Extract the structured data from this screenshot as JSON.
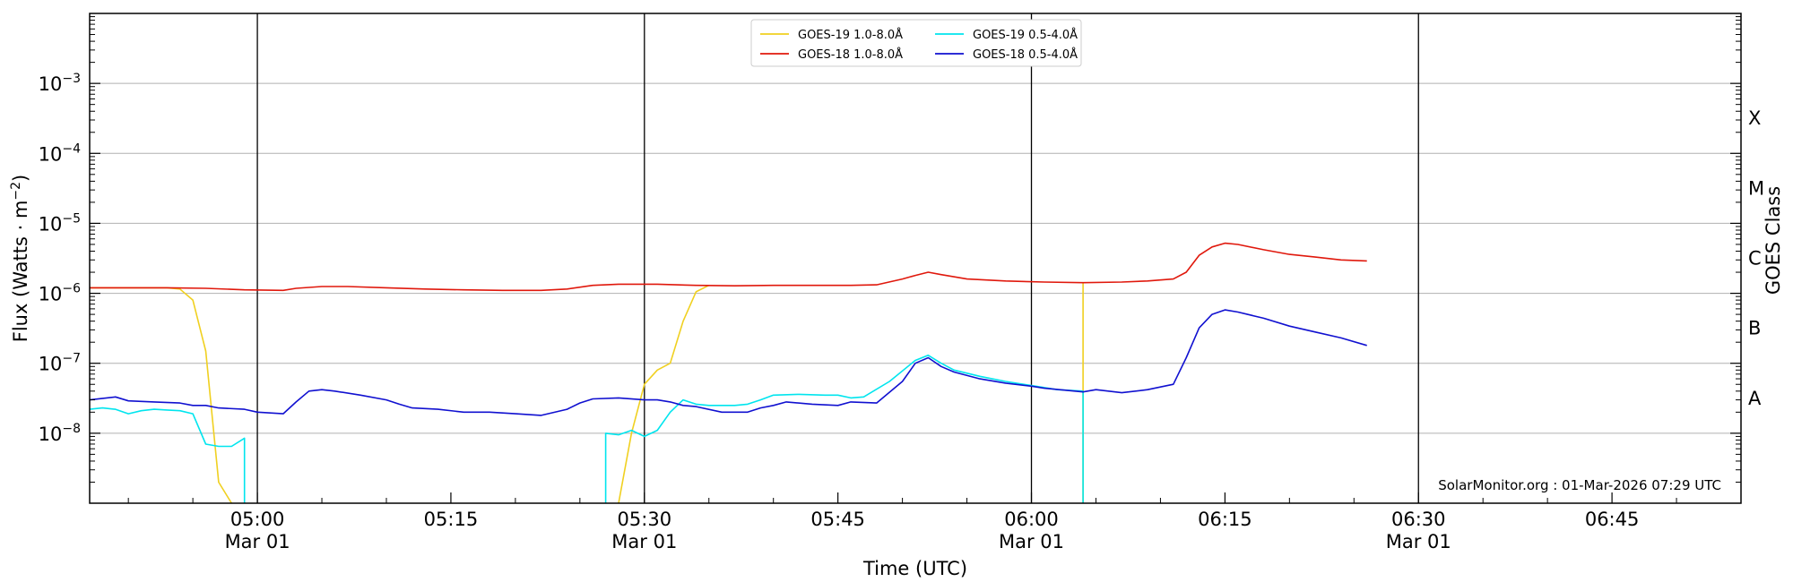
{
  "chart_data": {
    "type": "line",
    "xlabel": "Time (UTC)",
    "ylabel": "Flux (Watts · m",
    "ylabel_sup": "−2",
    "ylabel_close": ")",
    "right_label": "GOES Class",
    "watermark": "SolarMonitor.org : 01-Mar-2026 07:29 UTC",
    "x_range": [
      "04:47",
      "06:55"
    ],
    "y_range": [
      1e-09,
      0.01
    ],
    "y_scale": "log",
    "grid": "horizontal",
    "legend_position": "top-center",
    "y_ticks": [
      {
        "value": 1e-08,
        "base": "10",
        "exp": "−8"
      },
      {
        "value": 1e-07,
        "base": "10",
        "exp": "−7"
      },
      {
        "value": 1e-06,
        "base": "10",
        "exp": "−6"
      },
      {
        "value": 1e-05,
        "base": "10",
        "exp": "−5"
      },
      {
        "value": 0.0001,
        "base": "10",
        "exp": "−4"
      },
      {
        "value": 0.001,
        "base": "10",
        "exp": "−3"
      }
    ],
    "x_ticks": [
      {
        "t": "05:00",
        "label": "05:00",
        "sub": "Mar 01"
      },
      {
        "t": "05:15",
        "label": "05:15",
        "sub": ""
      },
      {
        "t": "05:30",
        "label": "05:30",
        "sub": "Mar 01"
      },
      {
        "t": "05:45",
        "label": "05:45",
        "sub": ""
      },
      {
        "t": "06:00",
        "label": "06:00",
        "sub": "Mar 01"
      },
      {
        "t": "06:15",
        "label": "06:15",
        "sub": ""
      },
      {
        "t": "06:30",
        "label": "06:30",
        "sub": "Mar 01"
      },
      {
        "t": "06:45",
        "label": "06:45",
        "sub": ""
      }
    ],
    "vertical_lines": [
      "05:00",
      "05:30",
      "06:00",
      "06:30"
    ],
    "classes": [
      {
        "label": "A",
        "value": 3.16e-08
      },
      {
        "label": "B",
        "value": 3.16e-07
      },
      {
        "label": "C",
        "value": 3.16e-06
      },
      {
        "label": "M",
        "value": 3.16e-05
      },
      {
        "label": "X",
        "value": 0.000316
      }
    ],
    "series": [
      {
        "name": "GOES-19 1.0-8.0Å",
        "color": "#f0d020",
        "points": [
          [
            "04:47",
            1.2e-06
          ],
          [
            "04:50",
            1.2e-06
          ],
          [
            "04:53",
            1.2e-06
          ],
          [
            "04:54",
            1.15e-06
          ],
          [
            "04:55",
            8e-07
          ],
          [
            "04:56",
            1.5e-07
          ],
          [
            "04:57",
            2e-09
          ],
          [
            "04:58",
            1e-09
          ]
        ],
        "segments": [
          [
            [
              "05:28",
              1e-09
            ],
            [
              "05:29",
              1e-08
            ],
            [
              "05:30",
              5e-08
            ],
            [
              "05:31",
              8e-08
            ],
            [
              "05:32",
              1e-07
            ],
            [
              "05:33",
              4e-07
            ],
            [
              "05:34",
              1.05e-06
            ],
            [
              "05:35",
              1.3e-06
            ]
          ],
          [
            [
              "06:04",
              1.4e-06
            ],
            [
              "06:04",
              1e-09
            ]
          ]
        ]
      },
      {
        "name": "GOES-19 0.5-4.0Å",
        "color": "#00e5ee",
        "points": [
          [
            "04:47",
            2.2e-08
          ],
          [
            "04:48",
            2.3e-08
          ],
          [
            "04:49",
            2.2e-08
          ],
          [
            "04:50",
            1.9e-08
          ],
          [
            "04:51",
            2.1e-08
          ],
          [
            "04:52",
            2.2e-08
          ],
          [
            "04:53",
            2.15e-08
          ],
          [
            "04:54",
            2.1e-08
          ],
          [
            "04:55",
            1.9e-08
          ],
          [
            "04:56",
            7e-09
          ],
          [
            "04:57",
            6.5e-09
          ],
          [
            "04:58",
            6.5e-09
          ],
          [
            "04:59",
            8.5e-09
          ],
          [
            "04:59",
            1e-09
          ]
        ],
        "segments": [
          [
            [
              "05:27",
              1e-09
            ],
            [
              "05:27",
              1e-08
            ],
            [
              "05:28",
              9.5e-09
            ],
            [
              "05:29",
              1.1e-08
            ],
            [
              "05:30",
              9e-09
            ],
            [
              "05:31",
              1.1e-08
            ],
            [
              "05:32",
              2e-08
            ],
            [
              "05:33",
              3e-08
            ],
            [
              "05:34",
              2.6e-08
            ],
            [
              "05:35",
              2.5e-08
            ],
            [
              "05:37",
              2.5e-08
            ],
            [
              "05:38",
              2.6e-08
            ],
            [
              "05:39",
              3e-08
            ],
            [
              "05:40",
              3.5e-08
            ],
            [
              "05:42",
              3.6e-08
            ],
            [
              "05:44",
              3.5e-08
            ],
            [
              "05:45",
              3.5e-08
            ],
            [
              "05:46",
              3.2e-08
            ],
            [
              "05:47",
              3.3e-08
            ],
            [
              "05:49",
              5.5e-08
            ],
            [
              "05:51",
              1.1e-07
            ],
            [
              "05:52",
              1.3e-07
            ],
            [
              "05:53",
              1e-07
            ],
            [
              "05:54",
              8e-08
            ],
            [
              "05:56",
              6.5e-08
            ],
            [
              "05:58",
              5.5e-08
            ],
            [
              "06:00",
              4.8e-08
            ],
            [
              "06:02",
              4.2e-08
            ],
            [
              "06:04",
              4e-08
            ],
            [
              "06:04",
              1e-09
            ]
          ]
        ]
      },
      {
        "name": "GOES-18 1.0-8.0Å",
        "color": "#e0180c",
        "points": [
          [
            "04:47",
            1.2e-06
          ],
          [
            "04:50",
            1.2e-06
          ],
          [
            "04:53",
            1.2e-06
          ],
          [
            "04:56",
            1.18e-06
          ],
          [
            "04:59",
            1.12e-06
          ],
          [
            "05:02",
            1.1e-06
          ],
          [
            "05:03",
            1.18e-06
          ],
          [
            "05:05",
            1.25e-06
          ],
          [
            "05:07",
            1.25e-06
          ],
          [
            "05:10",
            1.2e-06
          ],
          [
            "05:13",
            1.15e-06
          ],
          [
            "05:16",
            1.12e-06
          ],
          [
            "05:19",
            1.1e-06
          ],
          [
            "05:22",
            1.1e-06
          ],
          [
            "05:24",
            1.15e-06
          ],
          [
            "05:26",
            1.3e-06
          ],
          [
            "05:28",
            1.35e-06
          ],
          [
            "05:31",
            1.35e-06
          ],
          [
            "05:34",
            1.3e-06
          ],
          [
            "05:37",
            1.28e-06
          ],
          [
            "05:40",
            1.3e-06
          ],
          [
            "05:43",
            1.3e-06
          ],
          [
            "05:46",
            1.3e-06
          ],
          [
            "05:48",
            1.32e-06
          ],
          [
            "05:50",
            1.6e-06
          ],
          [
            "05:51",
            1.8e-06
          ],
          [
            "05:52",
            2e-06
          ],
          [
            "05:53",
            1.85e-06
          ],
          [
            "05:55",
            1.6e-06
          ],
          [
            "05:58",
            1.5e-06
          ],
          [
            "06:01",
            1.45e-06
          ],
          [
            "06:04",
            1.42e-06
          ],
          [
            "06:07",
            1.45e-06
          ],
          [
            "06:09",
            1.5e-06
          ],
          [
            "06:11",
            1.6e-06
          ],
          [
            "06:12",
            2e-06
          ],
          [
            "06:13",
            3.5e-06
          ],
          [
            "06:14",
            4.6e-06
          ],
          [
            "06:15",
            5.2e-06
          ],
          [
            "06:16",
            5e-06
          ],
          [
            "06:18",
            4.2e-06
          ],
          [
            "06:20",
            3.6e-06
          ],
          [
            "06:22",
            3.3e-06
          ],
          [
            "06:24",
            3e-06
          ],
          [
            "06:26",
            2.9e-06
          ]
        ]
      },
      {
        "name": "GOES-18 0.5-4.0Å",
        "color": "#1010d0",
        "points": [
          [
            "04:47",
            3e-08
          ],
          [
            "04:49",
            3.3e-08
          ],
          [
            "04:50",
            2.9e-08
          ],
          [
            "04:52",
            2.8e-08
          ],
          [
            "04:54",
            2.7e-08
          ],
          [
            "04:55",
            2.5e-08
          ],
          [
            "04:56",
            2.5e-08
          ],
          [
            "04:57",
            2.3e-08
          ],
          [
            "04:59",
            2.2e-08
          ],
          [
            "05:00",
            2e-08
          ],
          [
            "05:02",
            1.9e-08
          ],
          [
            "05:03",
            2.8e-08
          ],
          [
            "05:04",
            4e-08
          ],
          [
            "05:05",
            4.2e-08
          ],
          [
            "05:06",
            4e-08
          ],
          [
            "05:08",
            3.5e-08
          ],
          [
            "05:10",
            3e-08
          ],
          [
            "05:11",
            2.6e-08
          ],
          [
            "05:12",
            2.3e-08
          ],
          [
            "05:14",
            2.2e-08
          ],
          [
            "05:16",
            2e-08
          ],
          [
            "05:18",
            2e-08
          ],
          [
            "05:20",
            1.9e-08
          ],
          [
            "05:22",
            1.8e-08
          ],
          [
            "05:24",
            2.2e-08
          ],
          [
            "05:25",
            2.7e-08
          ],
          [
            "05:26",
            3.1e-08
          ],
          [
            "05:28",
            3.2e-08
          ],
          [
            "05:30",
            3e-08
          ],
          [
            "05:31",
            3e-08
          ],
          [
            "05:32",
            2.8e-08
          ],
          [
            "05:33",
            2.5e-08
          ],
          [
            "05:34",
            2.4e-08
          ],
          [
            "05:36",
            2e-08
          ],
          [
            "05:38",
            2e-08
          ],
          [
            "05:39",
            2.3e-08
          ],
          [
            "05:40",
            2.5e-08
          ],
          [
            "05:41",
            2.8e-08
          ],
          [
            "05:43",
            2.6e-08
          ],
          [
            "05:45",
            2.5e-08
          ],
          [
            "05:46",
            2.8e-08
          ],
          [
            "05:48",
            2.7e-08
          ],
          [
            "05:50",
            5.5e-08
          ],
          [
            "05:51",
            1e-07
          ],
          [
            "05:52",
            1.2e-07
          ],
          [
            "05:53",
            9e-08
          ],
          [
            "05:54",
            7.5e-08
          ],
          [
            "05:56",
            6e-08
          ],
          [
            "05:58",
            5.2e-08
          ],
          [
            "06:00",
            4.7e-08
          ],
          [
            "06:01",
            4.4e-08
          ],
          [
            "06:04",
            3.9e-08
          ],
          [
            "06:05",
            4.2e-08
          ],
          [
            "06:07",
            3.8e-08
          ],
          [
            "06:09",
            4.2e-08
          ],
          [
            "06:11",
            5e-08
          ],
          [
            "06:12",
            1.2e-07
          ],
          [
            "06:13",
            3.2e-07
          ],
          [
            "06:14",
            5e-07
          ],
          [
            "06:15",
            5.8e-07
          ],
          [
            "06:16",
            5.4e-07
          ],
          [
            "06:18",
            4.4e-07
          ],
          [
            "06:20",
            3.4e-07
          ],
          [
            "06:22",
            2.8e-07
          ],
          [
            "06:24",
            2.3e-07
          ],
          [
            "06:26",
            1.8e-07
          ]
        ]
      }
    ],
    "legend_order": [
      0,
      1,
      2,
      3
    ]
  }
}
